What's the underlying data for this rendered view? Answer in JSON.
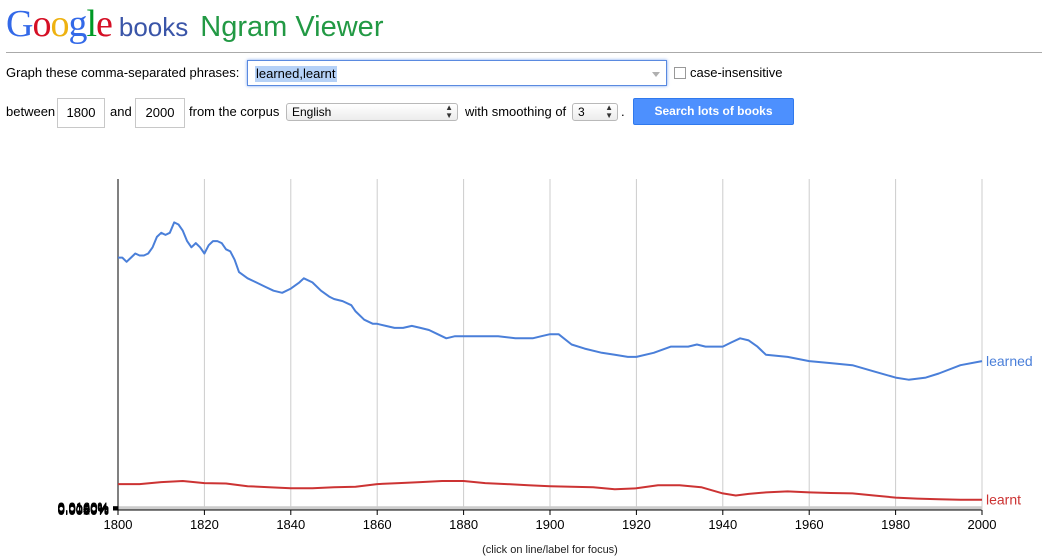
{
  "header": {
    "logo_letters": [
      {
        "ch": "G",
        "color": "#3369e8"
      },
      {
        "ch": "o",
        "color": "#d50f25"
      },
      {
        "ch": "o",
        "color": "#eeb211"
      },
      {
        "ch": "g",
        "color": "#3369e8"
      },
      {
        "ch": "l",
        "color": "#009925"
      },
      {
        "ch": "e",
        "color": "#d50f25"
      }
    ],
    "books": "books",
    "title": "Ngram Viewer"
  },
  "form": {
    "graph_label": "Graph these comma-separated phrases:",
    "phrases_value": "learned,learnt",
    "case_insensitive_label": "case-insensitive",
    "between_label": "between",
    "start_year": "1800",
    "and_label": "and",
    "end_year": "2000",
    "corpus_label": "from the corpus",
    "corpus_value": "English",
    "smoothing_label": "with smoothing of",
    "smoothing_value": "3",
    "period": ".",
    "search_button": "Search lots of books"
  },
  "footer_note": "(click on line/label for focus)",
  "chart_data": {
    "type": "line",
    "xlabel": "",
    "ylabel": "",
    "xlim": [
      1800,
      2000
    ],
    "ylim": [
      0,
      0.016
    ],
    "x_ticks": [
      "1800",
      "1820",
      "1840",
      "1860",
      "1880",
      "1900",
      "1920",
      "1940",
      "1960",
      "1980",
      "2000"
    ],
    "y_ticks": [
      "0.0000%",
      "0.0020%",
      "0.0040%",
      "0.0060%",
      "0.0080%",
      "0.0100%",
      "0.0120%",
      "0.0140%",
      "0.0160%"
    ],
    "grid": true,
    "legend_placement": "right end of lines",
    "series": [
      {
        "name": "learned",
        "color": "#4a7fd9",
        "x": [
          1800,
          1801,
          1802,
          1803,
          1804,
          1805,
          1806,
          1807,
          1808,
          1809,
          1810,
          1811,
          1812,
          1813,
          1814,
          1815,
          1816,
          1817,
          1818,
          1819,
          1820,
          1821,
          1822,
          1823,
          1824,
          1825,
          1826,
          1827,
          1828,
          1830,
          1832,
          1834,
          1836,
          1838,
          1840,
          1842,
          1843,
          1845,
          1847,
          1849,
          1850,
          1852,
          1854,
          1855,
          1857,
          1859,
          1860,
          1862,
          1864,
          1866,
          1868,
          1870,
          1872,
          1874,
          1876,
          1878,
          1880,
          1884,
          1888,
          1892,
          1896,
          1898,
          1900,
          1902,
          1905,
          1908,
          1912,
          1915,
          1918,
          1920,
          1924,
          1928,
          1932,
          1934,
          1936,
          1940,
          1942,
          1944,
          1946,
          1948,
          1950,
          1955,
          1960,
          1965,
          1970,
          1975,
          1980,
          1983,
          1987,
          1990,
          1995,
          2000
        ],
        "y": [
          0.0122,
          0.0122,
          0.012,
          0.0122,
          0.0124,
          0.0123,
          0.0123,
          0.0124,
          0.0127,
          0.0132,
          0.0134,
          0.0133,
          0.0134,
          0.0139,
          0.0138,
          0.0135,
          0.013,
          0.0127,
          0.0129,
          0.0127,
          0.0124,
          0.0128,
          0.013,
          0.013,
          0.0129,
          0.0126,
          0.0125,
          0.0121,
          0.0115,
          0.0112,
          0.011,
          0.0108,
          0.0106,
          0.0105,
          0.0107,
          0.011,
          0.0112,
          0.011,
          0.0106,
          0.0103,
          0.0102,
          0.0101,
          0.0099,
          0.0096,
          0.0092,
          0.009,
          0.009,
          0.0089,
          0.0088,
          0.0088,
          0.0089,
          0.0088,
          0.0087,
          0.0085,
          0.0083,
          0.0084,
          0.0084,
          0.0084,
          0.0084,
          0.0083,
          0.0083,
          0.0084,
          0.0085,
          0.0085,
          0.008,
          0.0078,
          0.0076,
          0.0075,
          0.0074,
          0.0074,
          0.0076,
          0.0079,
          0.0079,
          0.008,
          0.0079,
          0.0079,
          0.0081,
          0.0083,
          0.0082,
          0.0079,
          0.0075,
          0.0074,
          0.0072,
          0.0071,
          0.007,
          0.0067,
          0.0064,
          0.0063,
          0.0064,
          0.0066,
          0.007,
          0.0072
        ]
      },
      {
        "name": "learnt",
        "color": "#cc3333",
        "x": [
          1800,
          1805,
          1810,
          1815,
          1820,
          1825,
          1830,
          1835,
          1840,
          1845,
          1850,
          1855,
          1860,
          1865,
          1870,
          1875,
          1880,
          1885,
          1890,
          1895,
          1900,
          1905,
          1910,
          1915,
          1920,
          1925,
          1930,
          1935,
          1940,
          1943,
          1946,
          1950,
          1955,
          1960,
          1965,
          1970,
          1975,
          1980,
          1985,
          1990,
          1995,
          2000
        ],
        "y": [
          0.00125,
          0.00125,
          0.00135,
          0.0014,
          0.0013,
          0.00128,
          0.00115,
          0.0011,
          0.00105,
          0.00105,
          0.0011,
          0.00112,
          0.00125,
          0.0013,
          0.00135,
          0.0014,
          0.0014,
          0.0013,
          0.00125,
          0.0012,
          0.00115,
          0.00112,
          0.0011,
          0.001,
          0.00105,
          0.0012,
          0.0012,
          0.0011,
          0.0008,
          0.0007,
          0.00078,
          0.00085,
          0.0009,
          0.00085,
          0.00082,
          0.0008,
          0.0007,
          0.0006,
          0.00055,
          0.00052,
          0.0005,
          0.0005
        ]
      }
    ]
  }
}
